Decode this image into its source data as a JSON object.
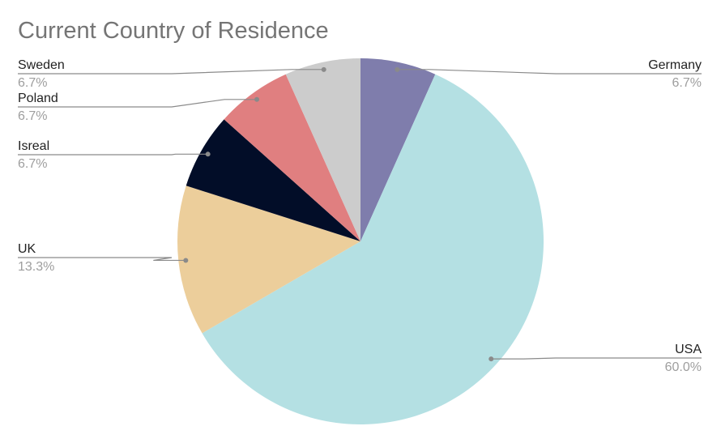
{
  "chart_data": {
    "type": "pie",
    "title": "Current Country of Residence",
    "categories": [
      "Germany",
      "USA",
      "UK",
      "Isreal",
      "Poland",
      "Sweden"
    ],
    "values": [
      6.7,
      60.0,
      13.3,
      6.7,
      6.7,
      6.7
    ],
    "value_labels": [
      "6.7%",
      "60.0%",
      "13.3%",
      "6.7%",
      "6.7%",
      "6.7%"
    ],
    "colors": [
      "#7f7dac",
      "#b4e0e3",
      "#ecce9b",
      "#020d28",
      "#e07f80",
      "#cccccc"
    ],
    "start_angle": "12 o'clock",
    "direction": "clockwise",
    "legend": "none",
    "data_labels": "outside with leader lines"
  }
}
